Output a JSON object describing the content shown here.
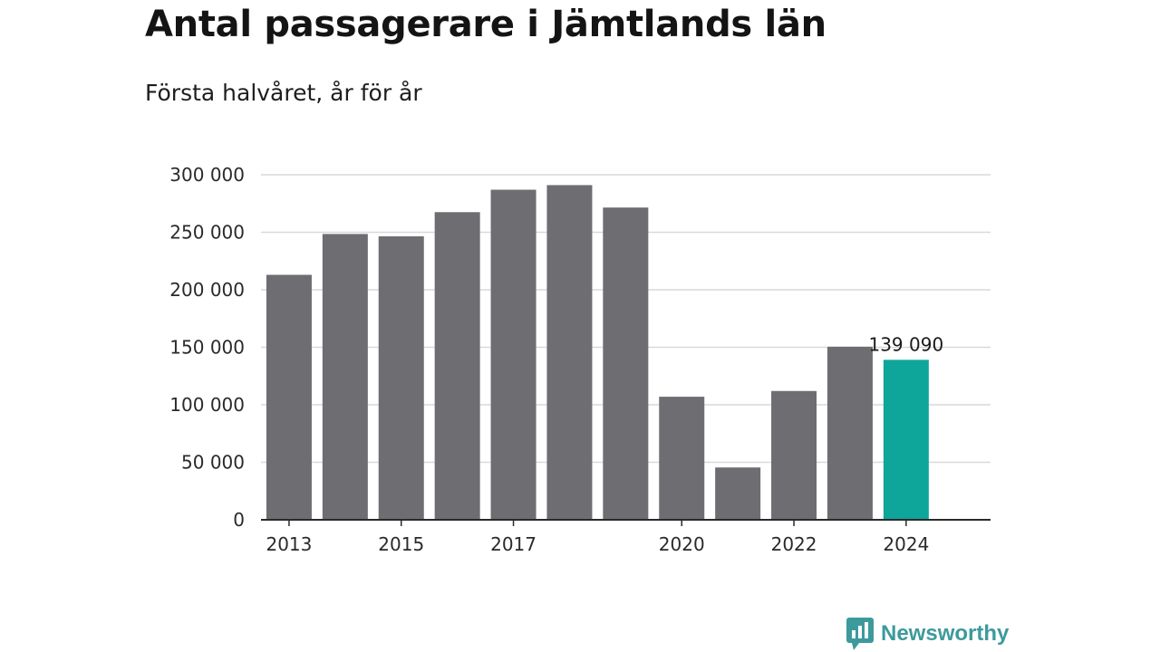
{
  "header": {
    "title": "Antal passagerare i Jämtlands län",
    "subtitle": "Första halvåret, år för år"
  },
  "brand": {
    "name": "Newsworthy",
    "icon": "newsworthy-logo-icon",
    "color": "#3d9a9c"
  },
  "colors": {
    "bar": "#6e6d72",
    "highlight": "#0ea59a",
    "grid": "#d9d9d9",
    "axis": "#2a2a2a"
  },
  "chart_data": {
    "type": "bar",
    "title": "Antal passagerare i Jämtlands län",
    "subtitle": "Första halvåret, år för år",
    "xlabel": "",
    "ylabel": "",
    "categories": [
      "2013",
      "2014",
      "2015",
      "2016",
      "2017",
      "2018",
      "2019",
      "2020",
      "2021",
      "2022",
      "2023",
      "2024"
    ],
    "x_tick_labels": [
      "2013",
      "2015",
      "2017",
      "2020",
      "2022",
      "2024"
    ],
    "values": [
      213000,
      248500,
      246500,
      267500,
      287000,
      291000,
      271500,
      107000,
      45500,
      112000,
      150500,
      139090
    ],
    "highlight_index": 11,
    "data_labels": [
      {
        "index": 11,
        "text": "139 090"
      }
    ],
    "ylim": [
      0,
      300000
    ],
    "y_ticks": [
      0,
      50000,
      100000,
      150000,
      200000,
      250000,
      300000
    ],
    "y_tick_labels": [
      "0",
      "50 000",
      "100 000",
      "150 000",
      "200 000",
      "250 000",
      "300 000"
    ],
    "grid": true,
    "legend": "none"
  }
}
